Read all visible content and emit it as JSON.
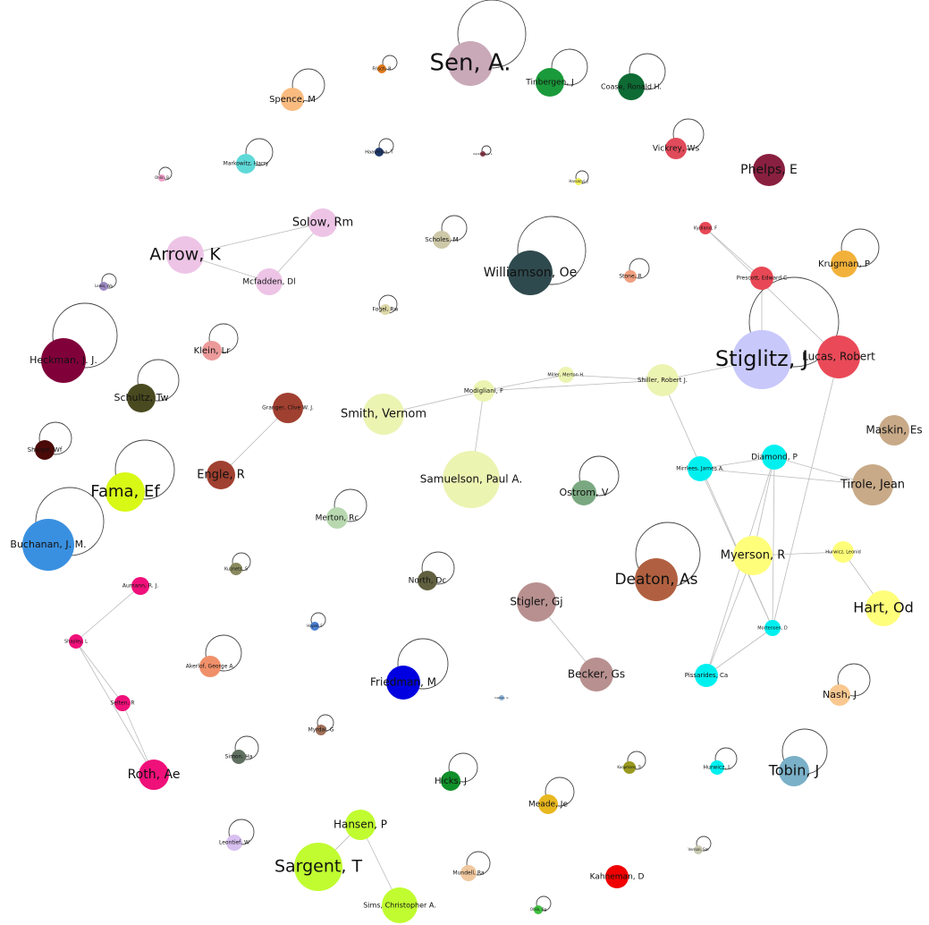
{
  "nodes": [
    {
      "label": "Sen, A."
    },
    {
      "label": "Tinbergen, J"
    },
    {
      "label": "Coase, Ronald H."
    },
    {
      "label": "Frisch, R"
    },
    {
      "label": "Spence, M"
    },
    {
      "label": "Vickrey, Ws"
    },
    {
      "label": "Phelps, E"
    },
    {
      "label": "Markowitz, Harry"
    },
    {
      "label": "Haavelmo, T"
    },
    {
      "label": "Kantorovich, L"
    },
    {
      "label": "Harsanyi, J"
    },
    {
      "label": "Ohlin, B"
    },
    {
      "label": "Solow, Rm"
    },
    {
      "label": "Arrow, K"
    },
    {
      "label": "Mcfadden, Dl"
    },
    {
      "label": "Scholes, M"
    },
    {
      "label": "Williamson, Oe"
    },
    {
      "label": "Kydland, F"
    },
    {
      "label": "Prescott, Edward C"
    },
    {
      "label": "Krugman, P"
    },
    {
      "label": "Stone, R"
    },
    {
      "label": "Lewis, Wa"
    },
    {
      "label": "Fogel, Rw"
    },
    {
      "label": "Stiglitz, J"
    },
    {
      "label": "Lucas, Robert"
    },
    {
      "label": "Heckman, J. J."
    },
    {
      "label": "Klein, Lr"
    },
    {
      "label": "Miller, Merton H."
    },
    {
      "label": "Modigliani, F"
    },
    {
      "label": "Shiller, Robert J."
    },
    {
      "label": "Schultz, Tw"
    },
    {
      "label": "Smith, Vernom"
    },
    {
      "label": "Granger, Clive W. J."
    },
    {
      "label": "Maskin, Es"
    },
    {
      "label": "Sharpe, Wf"
    },
    {
      "label": "Fama, Ef"
    },
    {
      "label": "Engle, R"
    },
    {
      "label": "Samuelson, Paul A."
    },
    {
      "label": "Ostrom, V"
    },
    {
      "label": "Mirrlees, James A."
    },
    {
      "label": "Diamond, P"
    },
    {
      "label": "Tirole, Jean"
    },
    {
      "label": "Buchanan, J. M."
    },
    {
      "label": "Merton, Rc"
    },
    {
      "label": "Kuznets, S"
    },
    {
      "label": "Myerson, R"
    },
    {
      "label": "Hurwicz, Leonid"
    },
    {
      "label": "Deaton, As"
    },
    {
      "label": "Hart, Od"
    },
    {
      "label": "Aumann, R. J."
    },
    {
      "label": "North, Dc"
    },
    {
      "label": "Stigler, Gj"
    },
    {
      "label": "Hayek, F"
    },
    {
      "label": "Mortensen, D"
    },
    {
      "label": "Shapley, L"
    },
    {
      "label": "Akerlof, George A."
    },
    {
      "label": "Friedman, M"
    },
    {
      "label": "Becker, Gs"
    },
    {
      "label": "Pissarides, Ca"
    },
    {
      "label": "Nash, J"
    },
    {
      "label": "Debreu, G"
    },
    {
      "label": "Selten, R"
    },
    {
      "label": "Myrdal, G"
    },
    {
      "label": "Simon, Ha"
    },
    {
      "label": "Roth, Ae"
    },
    {
      "label": "Hicks, J"
    },
    {
      "label": "Koopmans, Tc"
    },
    {
      "label": "Hurwicz, L"
    },
    {
      "label": "Tobin, J"
    },
    {
      "label": "Hansen, P"
    },
    {
      "label": "Sargent, T"
    },
    {
      "label": "Meade, Je"
    },
    {
      "label": "Leontief, W"
    },
    {
      "label": "Vernon, Sm"
    },
    {
      "label": "Mundell, Ra"
    },
    {
      "label": "Kahneman, D"
    },
    {
      "label": "Sims, Christopher A."
    },
    {
      "label": "Ohlin, Bg"
    }
  ]
}
